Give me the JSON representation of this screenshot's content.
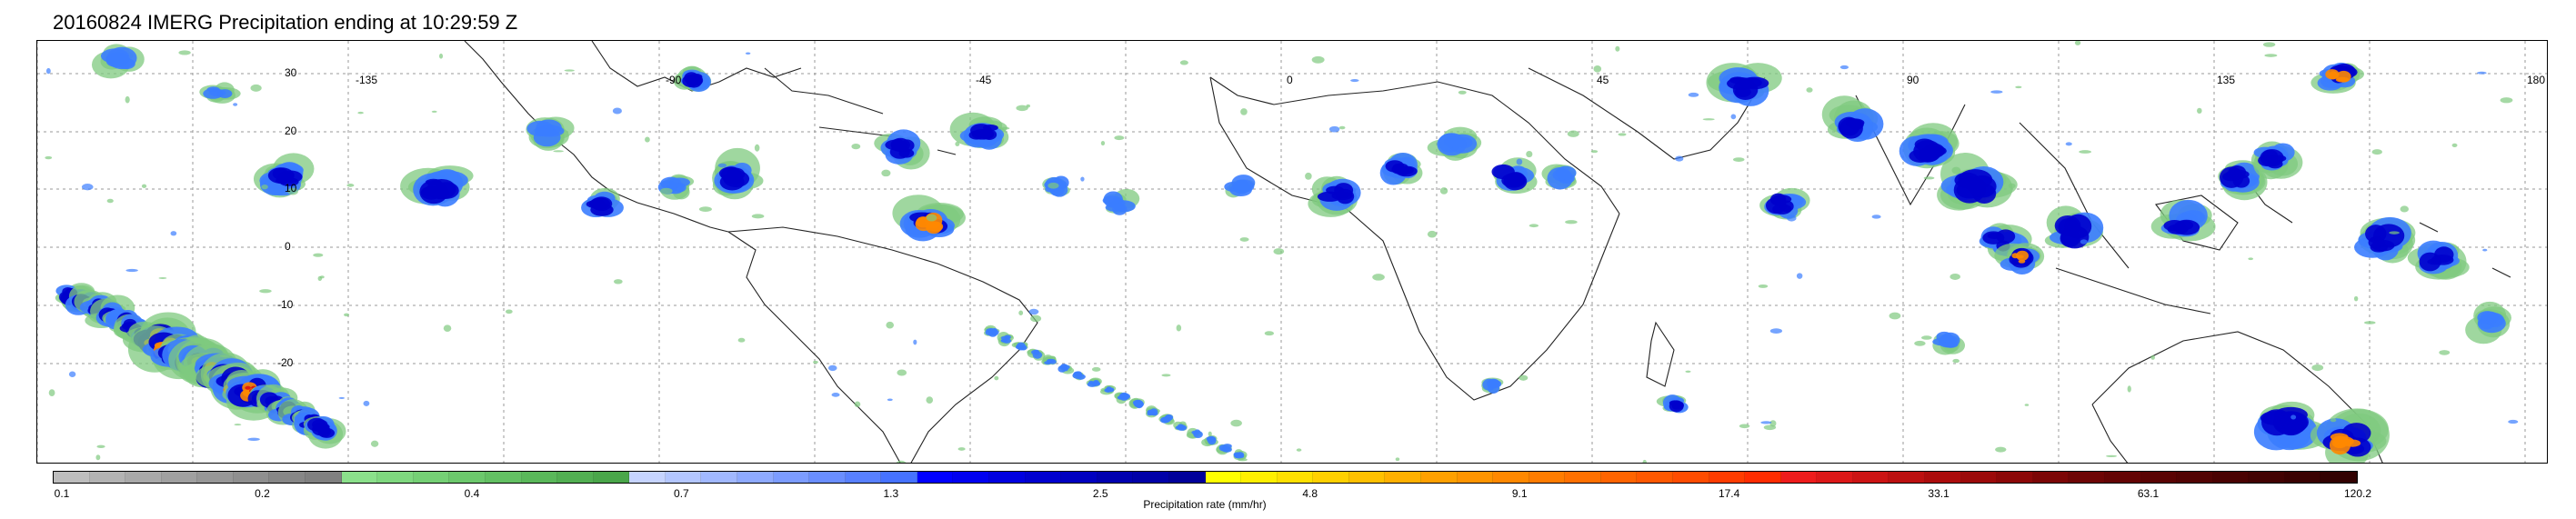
{
  "title": "20160824 IMERG Precipitation ending at 10:29:59 Z",
  "map": {
    "lat_labels": [
      "30",
      "20",
      "10",
      "0",
      "-10",
      "-20"
    ],
    "lon_labels": [
      "-135",
      "-90",
      "-45",
      "0",
      "45",
      "90",
      "135",
      "180"
    ]
  },
  "colorbar": {
    "label": "Precipitation rate (mm/hr)",
    "ticks": [
      "0.1",
      "0.2",
      "0.4",
      "0.7",
      "1.3",
      "2.5",
      "4.8",
      "9.1",
      "17.4",
      "33.1",
      "63.1",
      "120.2"
    ],
    "colors": [
      "#bdbdbd",
      "#b3b3b3",
      "#a9a9a9",
      "#a0a0a0",
      "#979797",
      "#8f8f8f",
      "#878787",
      "#808080",
      "#8be08b",
      "#7fd87f",
      "#75d075",
      "#6cc86c",
      "#63c063",
      "#5ab85a",
      "#52af52",
      "#4aa64a",
      "#c6d4ff",
      "#b3c6ff",
      "#a1b8ff",
      "#8eaaff",
      "#7c9cff",
      "#6a8eff",
      "#5880ff",
      "#4672ff",
      "#0000ff",
      "#0000f0",
      "#0000e0",
      "#0000d0",
      "#0000c0",
      "#0000b0",
      "#0000a8",
      "#00009a",
      "#ffff00",
      "#ffef00",
      "#ffe000",
      "#ffd000",
      "#ffc000",
      "#ffb000",
      "#ffa000",
      "#ff9400",
      "#ff8800",
      "#ff7c00",
      "#ff7000",
      "#ff6400",
      "#ff5800",
      "#ff4c00",
      "#ff3c00",
      "#ff2c00",
      "#ee1c1c",
      "#dc1818",
      "#cc1414",
      "#bc1010",
      "#ac0c0c",
      "#9c0a0a",
      "#8c0808",
      "#7c0606",
      "#6e0505",
      "#640404",
      "#5a0303",
      "#520303",
      "#4a0202",
      "#420202",
      "#3a0101",
      "#320101"
    ]
  },
  "legend_colors": {
    "light": "#7fc97f",
    "moderate": "#3b7dff",
    "heavy": "#0000cc",
    "intense": "#ff8800",
    "extreme": "#dd1111"
  }
}
